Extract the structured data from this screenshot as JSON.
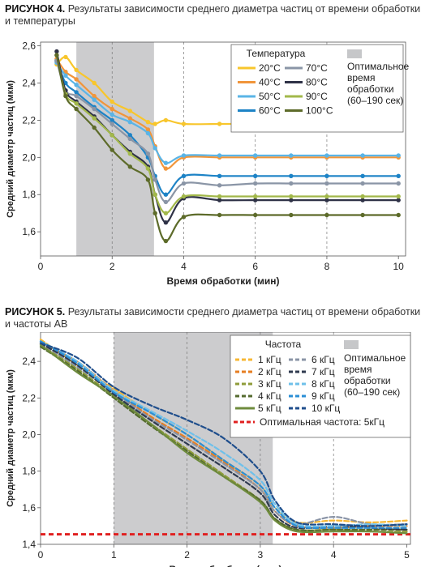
{
  "figures": [
    {
      "label": "РИСУНОК 4.",
      "caption": "Результаты зависимости среднего диаметра частиц от времени обработки и температуры",
      "caption_line1": "Результаты зависимости среднего диаметра частиц от времени обработки",
      "caption_line2": "и температуры"
    },
    {
      "label": "РИСУНОК 5.",
      "caption": "Результаты зависимости среднего диаметра частиц от времени обработки и частоты АВ",
      "caption_line1": "Результаты зависимости среднего диаметра частиц от времени обработки",
      "caption_line2": "и частоты АВ"
    }
  ],
  "chart_data": [
    {
      "type": "line",
      "xlabel": "Время обработки (мин)",
      "ylabel": "Средний диаметр частиц (мкм)",
      "xlim": [
        0,
        10.2
      ],
      "ylim": [
        1.47,
        2.62
      ],
      "xticks": [
        0,
        2,
        4,
        6,
        8,
        10
      ],
      "yticks": [
        1.6,
        1.8,
        2.0,
        2.2,
        2.4,
        2.6
      ],
      "xtick_labels": [
        "0",
        "2",
        "4",
        "6",
        "8",
        "10"
      ],
      "ytick_labels": [
        "1,6",
        "1,8",
        "2,0",
        "2,2",
        "2,4",
        "2,6"
      ],
      "grid": "vertical dashed at 2, 4, 6, 8",
      "shaded_region": {
        "x": [
          1.0,
          3.17
        ],
        "color": "#c6c7c9",
        "label": "Оптимальное время обработки (60–190 сек)"
      },
      "legend": {
        "title": "Температура",
        "placement": "top-right",
        "shade_label_lines": [
          "Оптимальное",
          "время",
          "обработки",
          "(60–190 сек)"
        ]
      },
      "x": [
        0.45,
        0.7,
        1.0,
        1.5,
        2.0,
        2.5,
        3.0,
        3.2,
        3.5,
        4.0,
        5.0,
        6.0,
        7.0,
        8.0,
        9.0,
        10.0
      ],
      "series": [
        {
          "name": "20°С",
          "color": "#f8c62c",
          "dash": "solid",
          "values": [
            2.5,
            2.54,
            2.47,
            2.4,
            2.3,
            2.25,
            2.19,
            2.18,
            2.2,
            2.18,
            2.18,
            2.18,
            2.18,
            2.18,
            2.18,
            2.18
          ]
        },
        {
          "name": "40°С",
          "color": "#f1953a",
          "dash": "solid",
          "values": [
            2.53,
            2.46,
            2.42,
            2.33,
            2.26,
            2.21,
            2.15,
            2.06,
            1.94,
            2.0,
            2.0,
            2.0,
            2.0,
            2.0,
            2.0,
            2.0
          ]
        },
        {
          "name": "50°С",
          "color": "#5ab4e6",
          "dash": "solid",
          "values": [
            2.51,
            2.44,
            2.39,
            2.31,
            2.23,
            2.19,
            2.13,
            2.05,
            1.97,
            2.01,
            2.01,
            2.01,
            2.01,
            2.01,
            2.01,
            2.01
          ]
        },
        {
          "name": "60°С",
          "color": "#1d83c6",
          "dash": "solid",
          "values": [
            2.52,
            2.4,
            2.35,
            2.27,
            2.2,
            2.12,
            2.0,
            1.9,
            1.8,
            1.9,
            1.9,
            1.9,
            1.9,
            1.9,
            1.9,
            1.9
          ]
        },
        {
          "name": "70°С",
          "color": "#8a95a6",
          "dash": "solid",
          "values": [
            2.52,
            2.36,
            2.33,
            2.26,
            2.18,
            2.1,
            2.02,
            1.88,
            1.76,
            1.86,
            1.85,
            1.86,
            1.86,
            1.86,
            1.86,
            1.86
          ]
        },
        {
          "name": "80°С",
          "color": "#2e3146",
          "dash": "solid",
          "values": [
            2.57,
            2.36,
            2.3,
            2.22,
            2.12,
            2.03,
            1.95,
            1.8,
            1.65,
            1.78,
            1.77,
            1.77,
            1.77,
            1.77,
            1.77,
            1.77
          ]
        },
        {
          "name": "90°С",
          "color": "#a2b84a",
          "dash": "solid",
          "values": [
            2.55,
            2.34,
            2.29,
            2.21,
            2.12,
            2.02,
            1.94,
            1.8,
            1.7,
            1.79,
            1.79,
            1.79,
            1.79,
            1.79,
            1.79,
            1.79
          ]
        },
        {
          "name": "100°С",
          "color": "#5d6b2a",
          "dash": "solid",
          "values": [
            2.55,
            2.33,
            2.26,
            2.16,
            2.04,
            1.95,
            1.88,
            1.7,
            1.55,
            1.68,
            1.69,
            1.69,
            1.69,
            1.69,
            1.69,
            1.69
          ]
        }
      ]
    },
    {
      "type": "line",
      "xlabel": "Время обработки (мин)",
      "ylabel": "Средний диаметр частиц (мкм)",
      "xlim": [
        0,
        5.05
      ],
      "ylim": [
        1.4,
        2.56
      ],
      "xticks": [
        0,
        1,
        2,
        3,
        4,
        5
      ],
      "yticks": [
        1.4,
        1.6,
        1.8,
        2.0,
        2.2,
        2.4
      ],
      "xtick_labels": [
        "0",
        "1",
        "2",
        "3",
        "4",
        "5"
      ],
      "ytick_labels": [
        "1,4",
        "1,6",
        "1,8",
        "2,0",
        "2,2",
        "2,4"
      ],
      "grid": "vertical dashed at 1, 2, 3, 4",
      "shaded_region": {
        "x": [
          1.0,
          3.17
        ],
        "color": "#c6c7c9",
        "label": "Оптимальное время обработки (60–190 сек)"
      },
      "legend": {
        "title": "Частота",
        "placement": "top-right",
        "shade_label_lines": [
          "Оптимальное",
          "время",
          "обработки",
          "(60–190 сек)"
        ]
      },
      "x": [
        0.0,
        0.5,
        1.0,
        1.5,
        2.0,
        2.5,
        3.0,
        3.2,
        3.5,
        4.0,
        4.5,
        5.0
      ],
      "series": [
        {
          "name": "1 кГц",
          "color": "#f7b733",
          "dash": "dashed",
          "values": [
            2.52,
            2.38,
            2.25,
            2.12,
            2.0,
            1.86,
            1.72,
            1.6,
            1.52,
            1.53,
            1.52,
            1.53
          ]
        },
        {
          "name": "2 кГц",
          "color": "#e67e22",
          "dash": "dashed",
          "values": [
            2.5,
            2.4,
            2.24,
            2.1,
            1.98,
            1.85,
            1.7,
            1.58,
            1.5,
            1.49,
            1.5,
            1.5
          ]
        },
        {
          "name": "3 кГц",
          "color": "#8f9c3a",
          "dash": "dashed",
          "values": [
            2.49,
            2.36,
            2.21,
            2.06,
            1.92,
            1.78,
            1.64,
            1.54,
            1.48,
            1.48,
            1.47,
            1.47
          ]
        },
        {
          "name": "4 кГц",
          "color": "#556b2f",
          "dash": "dashed",
          "values": [
            2.48,
            2.35,
            2.2,
            2.05,
            1.91,
            1.77,
            1.64,
            1.54,
            1.48,
            1.48,
            1.48,
            1.48
          ]
        },
        {
          "name": "5 кГц",
          "color": "#6e8b3d",
          "dash": "solid",
          "values": [
            2.49,
            2.34,
            2.21,
            2.06,
            1.9,
            1.77,
            1.63,
            1.53,
            1.47,
            1.47,
            1.47,
            1.46
          ]
        },
        {
          "name": "6 кГц",
          "color": "#8a94a6",
          "dash": "dashed",
          "values": [
            2.5,
            2.37,
            2.23,
            2.09,
            1.97,
            1.84,
            1.7,
            1.58,
            1.51,
            1.55,
            1.51,
            1.51
          ]
        },
        {
          "name": "7 кГц",
          "color": "#2f3a4f",
          "dash": "dashed",
          "values": [
            2.5,
            2.38,
            2.22,
            2.08,
            1.95,
            1.82,
            1.68,
            1.56,
            1.49,
            1.5,
            1.49,
            1.48
          ]
        },
        {
          "name": "8 кГц",
          "color": "#6fc0ea",
          "dash": "dashed",
          "values": [
            2.51,
            2.4,
            2.24,
            2.13,
            2.02,
            1.9,
            1.75,
            1.62,
            1.51,
            1.5,
            1.51,
            1.5
          ]
        },
        {
          "name": "9 кГц",
          "color": "#2b8fd6",
          "dash": "dashed",
          "values": [
            2.51,
            2.39,
            2.23,
            2.12,
            2.0,
            1.86,
            1.72,
            1.6,
            1.5,
            1.49,
            1.49,
            1.49
          ]
        },
        {
          "name": "10 кГц",
          "color": "#1f4e8c",
          "dash": "dashed",
          "values": [
            2.5,
            2.42,
            2.26,
            2.16,
            2.08,
            1.98,
            1.8,
            1.64,
            1.52,
            1.51,
            1.5,
            1.51
          ]
        }
      ],
      "reference_line": {
        "name": "Оптимальная частота: 5кГц",
        "y": 1.455,
        "color": "#e02020",
        "dash": "dashed"
      }
    }
  ]
}
